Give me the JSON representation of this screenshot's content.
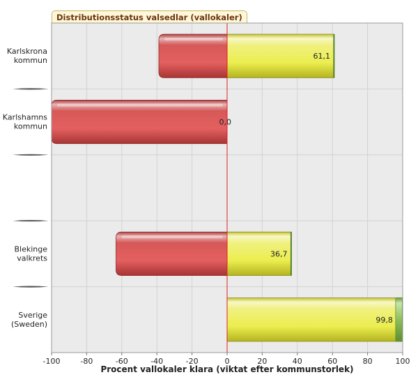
{
  "chart_data": {
    "type": "bar",
    "orientation": "horizontal",
    "title": "Distributionsstatus valsedlar (vallokaler)",
    "xlabel": "Procent vallokaler klara (viktat efter kommunstorlek)",
    "xlim": [
      -100,
      100
    ],
    "xticks": [
      "-100",
      "-80",
      "-60",
      "-40",
      "-20",
      "0",
      "20",
      "40",
      "60",
      "80",
      "100"
    ],
    "grid": true,
    "legend": "none",
    "categories": [
      {
        "line1": "Karlskrona",
        "line2": "kommun"
      },
      {
        "line1": "Karlshamns",
        "line2": "kommun"
      },
      {
        "line1": "",
        "line2": ""
      },
      {
        "line1": "Blekinge",
        "line2": "valkrets"
      },
      {
        "line1": "Sverige",
        "line2": "(Sweden)"
      }
    ],
    "values": [
      61.1,
      0.0,
      null,
      36.7,
      99.8
    ],
    "value_labels": [
      "61,1",
      "0,0",
      "",
      "36,7",
      "99,8"
    ],
    "negative_bars": [
      -38.9,
      -100,
      null,
      -63.3,
      -0.2
    ],
    "colors": {
      "negative": "#e05a5a",
      "positive": "#eef060",
      "positive_tip": "#8cbf5a",
      "zero_line": "#e02020",
      "plot_bg": "#ebebeb"
    }
  }
}
